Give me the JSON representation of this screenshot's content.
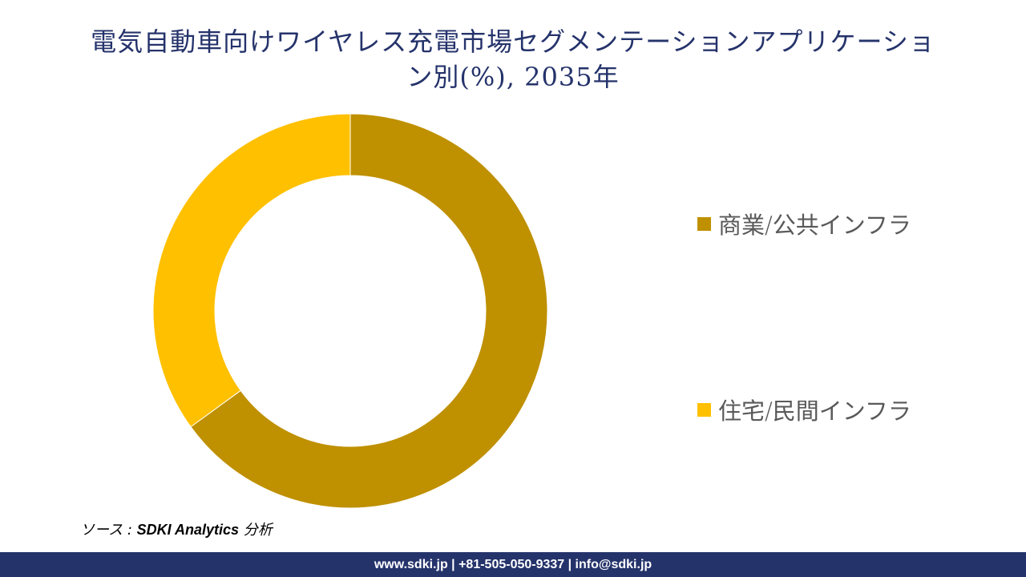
{
  "title": {
    "line1": "電気自動車向けワイヤレス充電市場セグメンテーションアプリケーショ",
    "line2": "ン別(%), 2035年"
  },
  "chart_data": {
    "type": "pie",
    "subtype": "donut",
    "title": "電気自動車向けワイヤレス充電市場セグメンテーションアプリケーション別(%), 2035年",
    "categories": [
      "商業/公共インフラ",
      "住宅/民間インフラ"
    ],
    "values": [
      65,
      35
    ],
    "unit": "%",
    "colors": [
      "#bf9000",
      "#ffc000"
    ],
    "start_angle_deg": 0,
    "direction": "clockwise",
    "legend_position": "right",
    "data_labels": false
  },
  "legend": {
    "items": [
      {
        "label": "商業/公共インフラ",
        "color": "#bf9000"
      },
      {
        "label": "住宅/民間インフラ",
        "color": "#ffc000"
      }
    ]
  },
  "source": {
    "prefix": "ソース : ",
    "brand": "SDKI Analytics",
    "suffix": " 分析"
  },
  "footer": {
    "text": "www.sdki.jp | +81-505-050-9337 | info@sdki.jp"
  },
  "colors": {
    "title": "#25336b",
    "footer_bg": "#25336b"
  }
}
